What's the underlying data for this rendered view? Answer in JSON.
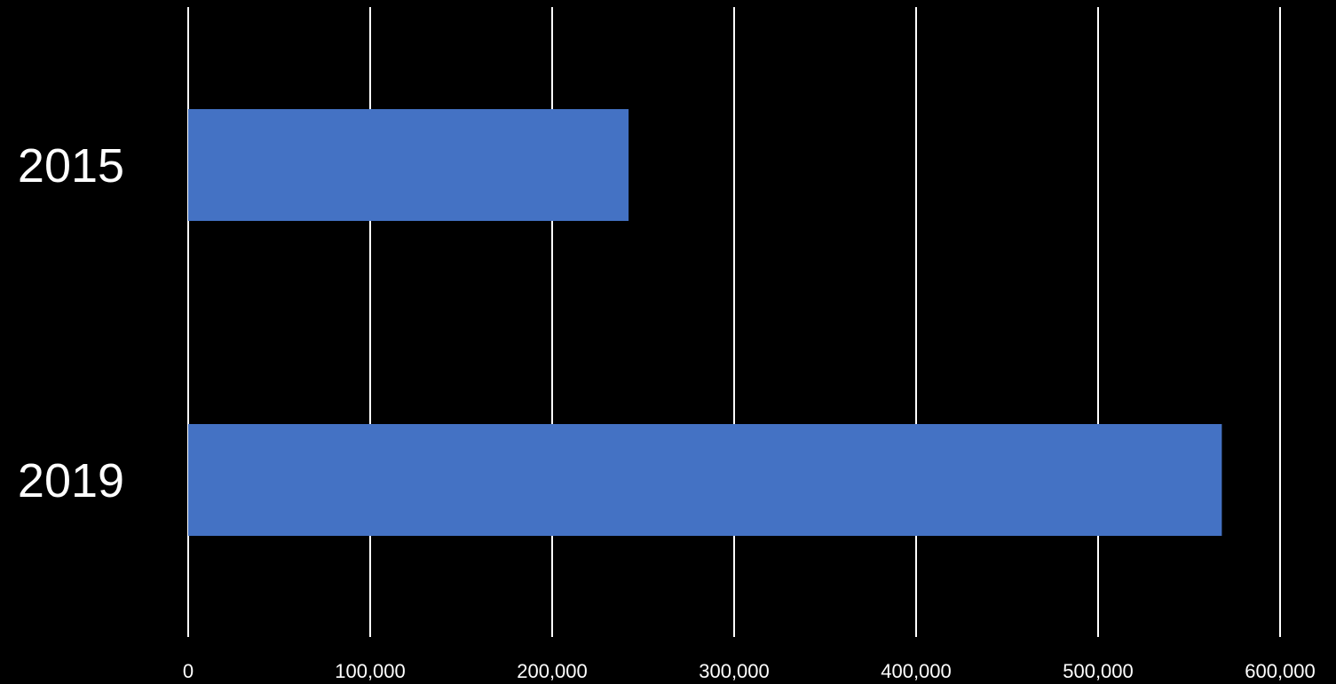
{
  "chart_data": {
    "type": "bar",
    "orientation": "horizontal",
    "categories": [
      "2015",
      "2019"
    ],
    "values": [
      242000,
      568000
    ],
    "xlim": [
      0,
      600000
    ],
    "x_ticks": [
      0,
      100000,
      200000,
      300000,
      400000,
      500000,
      600000
    ],
    "x_tick_labels": [
      "0",
      "100,000",
      "200,000",
      "300,000",
      "400,000",
      "500,000",
      "600,000"
    ],
    "grid": "vertical",
    "legend": "none",
    "title": "",
    "xlabel": "",
    "ylabel": ""
  },
  "colors": {
    "background": "#000000",
    "bar": "#4472c4",
    "grid": "#ffffff",
    "text": "#ffffff"
  }
}
